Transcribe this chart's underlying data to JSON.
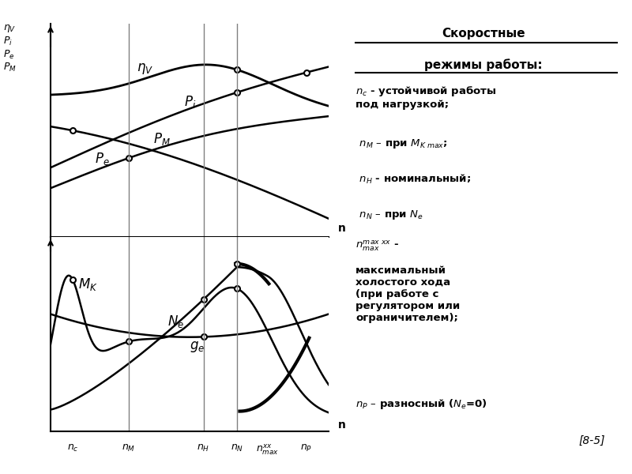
{
  "x_positions": {
    "nc": 0.08,
    "nM": 0.28,
    "nH": 0.55,
    "nN": 0.67,
    "nmax": 0.78,
    "nP": 0.92
  },
  "right_title_line1": "Скоростные",
  "right_title_line2": "режимы работы:",
  "ref": "[8-5]",
  "top_ylabels": [
    "η_V",
    "P_i",
    "P_e",
    "P_M"
  ]
}
